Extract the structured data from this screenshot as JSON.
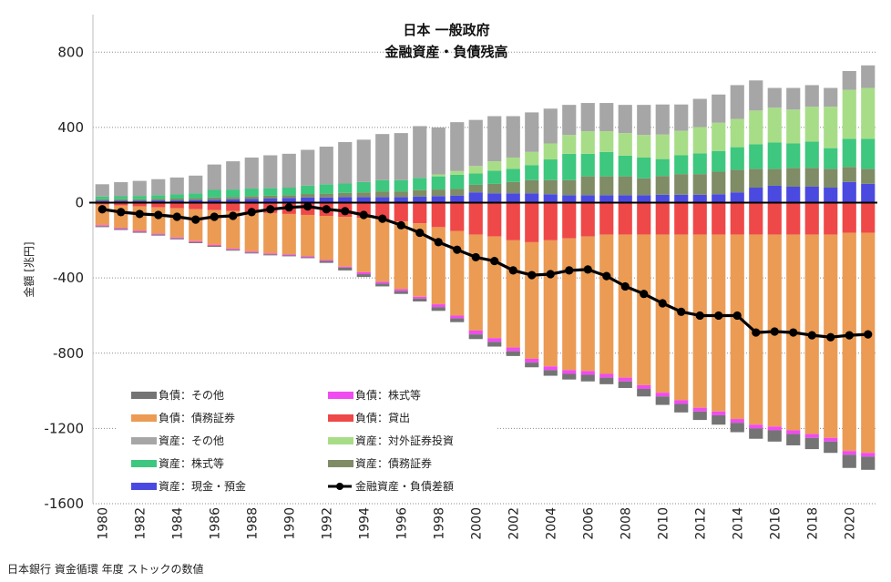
{
  "chart_data": {
    "type": "bar",
    "stacked": true,
    "title": [
      "日本 一般政府",
      "金融資産・負債残高"
    ],
    "ylabel": "金額 [兆円]",
    "ylim": [
      -1600,
      1000
    ],
    "yticks": [
      800,
      400,
      0,
      -400,
      -800,
      -1200,
      -1600
    ],
    "grid": true,
    "legend_position": "bottom-center",
    "x": [
      1980,
      1981,
      1982,
      1983,
      1984,
      1985,
      1986,
      1987,
      1988,
      1989,
      1990,
      1991,
      1992,
      1993,
      1994,
      1995,
      1996,
      1997,
      1998,
      1999,
      2000,
      2001,
      2002,
      2003,
      2004,
      2005,
      2006,
      2007,
      2008,
      2009,
      2010,
      2011,
      2012,
      2013,
      2014,
      2015,
      2016,
      2017,
      2018,
      2019,
      2020,
      2021
    ],
    "xtick_labels": [
      "1980",
      "1982",
      "1984",
      "1986",
      "1988",
      "1990",
      "1992",
      "1994",
      "1996",
      "1998",
      "2000",
      "2002",
      "2004",
      "2006",
      "2008",
      "2010",
      "2012",
      "2014",
      "2016",
      "2018",
      "2020"
    ],
    "asset_series": [
      {
        "name": "資産：現金・預金",
        "color": "#4a4ae0",
        "values": [
          10,
          10,
          10,
          12,
          12,
          14,
          16,
          18,
          20,
          22,
          25,
          28,
          28,
          30,
          30,
          30,
          30,
          32,
          35,
          38,
          55,
          50,
          50,
          50,
          45,
          40,
          40,
          40,
          40,
          40,
          42,
          42,
          42,
          45,
          55,
          80,
          90,
          85,
          85,
          80,
          110,
          100
        ]
      },
      {
        "name": "資産：債務証券",
        "color": "#7f8c66",
        "values": [
          8,
          8,
          8,
          8,
          10,
          10,
          12,
          12,
          15,
          15,
          15,
          18,
          20,
          22,
          25,
          30,
          30,
          35,
          35,
          35,
          40,
          50,
          60,
          70,
          75,
          80,
          100,
          100,
          100,
          90,
          100,
          110,
          110,
          120,
          120,
          100,
          90,
          100,
          100,
          100,
          80,
          80
        ]
      },
      {
        "name": "資産：株式等",
        "color": "#3ec77e",
        "values": [
          15,
          16,
          18,
          20,
          22,
          25,
          40,
          40,
          40,
          40,
          40,
          45,
          50,
          50,
          55,
          60,
          60,
          65,
          70,
          75,
          60,
          70,
          70,
          80,
          110,
          140,
          120,
          130,
          110,
          110,
          90,
          100,
          110,
          110,
          120,
          130,
          140,
          130,
          140,
          110,
          150,
          160
        ]
      },
      {
        "name": "資産：対外証券投資",
        "color": "#a8dd88",
        "values": [
          0,
          0,
          0,
          0,
          0,
          0,
          0,
          0,
          0,
          0,
          0,
          0,
          0,
          0,
          0,
          0,
          0,
          0,
          10,
          20,
          40,
          50,
          60,
          70,
          85,
          100,
          120,
          110,
          120,
          120,
          130,
          130,
          140,
          150,
          150,
          180,
          185,
          180,
          185,
          220,
          260,
          270
        ]
      },
      {
        "name": "資産：その他",
        "color": "#a6a6a6",
        "values": [
          65,
          75,
          80,
          85,
          90,
          95,
          135,
          150,
          165,
          175,
          180,
          190,
          200,
          220,
          225,
          245,
          250,
          275,
          250,
          260,
          245,
          240,
          220,
          210,
          185,
          160,
          150,
          150,
          150,
          160,
          160,
          140,
          150,
          150,
          180,
          160,
          105,
          115,
          115,
          100,
          100,
          120
        ]
      }
    ],
    "liability_series": [
      {
        "name": "負債：貸出",
        "color": "#ef4848",
        "values": [
          -10,
          -15,
          -20,
          -25,
          -30,
          -35,
          -40,
          -45,
          -50,
          -55,
          -60,
          -65,
          -70,
          -75,
          -80,
          -90,
          -100,
          -110,
          -130,
          -150,
          -170,
          -180,
          -200,
          -210,
          -200,
          -190,
          -180,
          -170,
          -170,
          -170,
          -170,
          -170,
          -170,
          -170,
          -170,
          -170,
          -170,
          -170,
          -170,
          -170,
          -160,
          -160
        ]
      },
      {
        "name": "負債：債務証券",
        "color": "#eb9b54",
        "values": [
          -110,
          -120,
          -130,
          -140,
          -155,
          -170,
          -185,
          -200,
          -210,
          -215,
          -215,
          -220,
          -235,
          -265,
          -290,
          -330,
          -360,
          -390,
          -410,
          -450,
          -510,
          -540,
          -570,
          -620,
          -670,
          -700,
          -715,
          -740,
          -760,
          -800,
          -840,
          -880,
          -920,
          -940,
          -980,
          -1010,
          -1020,
          -1040,
          -1060,
          -1080,
          -1160,
          -1170
        ]
      },
      {
        "name": "負債：株式等",
        "color": "#f04bf0",
        "values": [
          -5,
          -5,
          -5,
          -5,
          -5,
          -5,
          -5,
          -5,
          -5,
          -5,
          -5,
          -5,
          -5,
          -5,
          -10,
          -10,
          -10,
          -10,
          -15,
          -15,
          -20,
          -20,
          -20,
          -20,
          -20,
          -20,
          -20,
          -20,
          -20,
          -20,
          -20,
          -20,
          -20,
          -20,
          -20,
          -20,
          -20,
          -20,
          -20,
          -20,
          -20,
          -20
        ]
      },
      {
        "name": "負債：その他",
        "color": "#747474",
        "values": [
          -5,
          -5,
          -5,
          -5,
          -5,
          -5,
          -5,
          -5,
          -5,
          -5,
          -5,
          -5,
          -10,
          -15,
          -15,
          -15,
          -15,
          -15,
          -20,
          -20,
          -25,
          -25,
          -25,
          -25,
          -30,
          -30,
          -35,
          -35,
          -35,
          -40,
          -45,
          -45,
          -45,
          -50,
          -50,
          -55,
          -60,
          -60,
          -60,
          -60,
          -70,
          -70
        ]
      }
    ],
    "line_series": {
      "name": "金融資産・負債差額",
      "color": "#000000",
      "values": [
        -35,
        -50,
        -60,
        -65,
        -75,
        -90,
        -75,
        -70,
        -50,
        -35,
        -25,
        -20,
        -35,
        -45,
        -65,
        -85,
        -120,
        -160,
        -210,
        -250,
        -290,
        -310,
        -360,
        -385,
        -380,
        -360,
        -355,
        -390,
        -445,
        -485,
        -535,
        -580,
        -600,
        -600,
        -600,
        -690,
        -685,
        -690,
        -705,
        -715,
        -705,
        -700
      ]
    },
    "legend": [
      {
        "label": "負債：その他",
        "color": "#747474",
        "kind": "box"
      },
      {
        "label": "負債：株式等",
        "color": "#f04bf0",
        "kind": "box"
      },
      {
        "label": "負債：債務証券",
        "color": "#eb9b54",
        "kind": "box"
      },
      {
        "label": "負債：貸出",
        "color": "#ef4848",
        "kind": "box"
      },
      {
        "label": "資産：その他",
        "color": "#a6a6a6",
        "kind": "box"
      },
      {
        "label": "資産：対外証券投資",
        "color": "#a8dd88",
        "kind": "box"
      },
      {
        "label": "資産：株式等",
        "color": "#3ec77e",
        "kind": "box"
      },
      {
        "label": "資産：債務証券",
        "color": "#7f8c66",
        "kind": "box"
      },
      {
        "label": "資産：現金・預金",
        "color": "#4a4ae0",
        "kind": "box"
      },
      {
        "label": "金融資産・負債差額",
        "color": "#000000",
        "kind": "line"
      }
    ]
  },
  "source_note": "日本銀行 資金循環 年度 ストックの数値"
}
